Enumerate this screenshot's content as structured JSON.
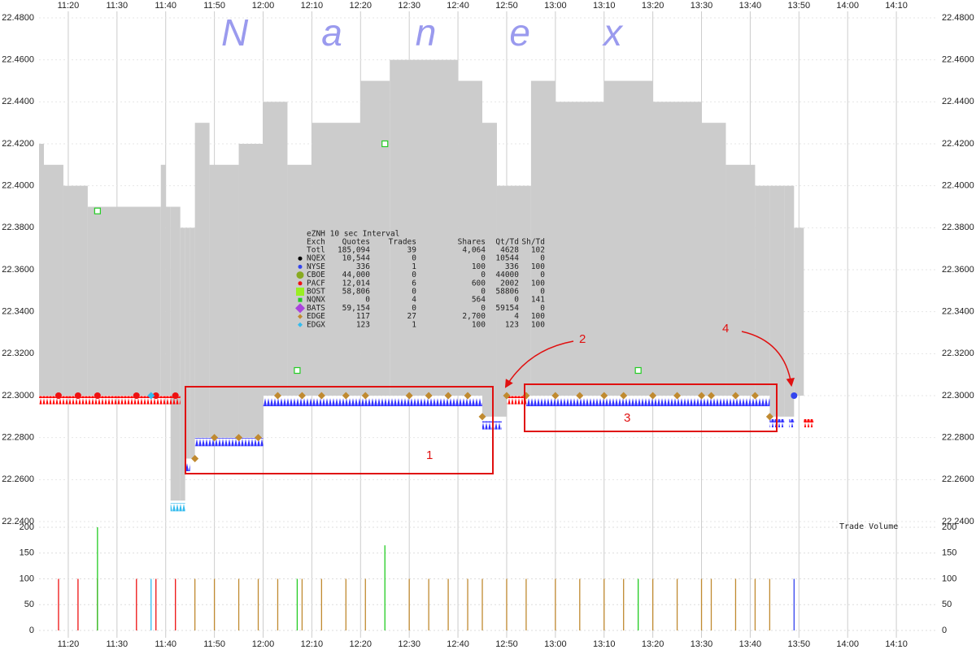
{
  "chart_data": {
    "type": "tick-chart",
    "watermark": "Nanex",
    "volume_title": "Trade Volume",
    "xlim": [
      "11:14",
      "14:18"
    ],
    "xticks": [
      "11:20",
      "11:30",
      "11:40",
      "11:50",
      "12:00",
      "12:10",
      "12:20",
      "12:30",
      "12:40",
      "12:50",
      "13:00",
      "13:10",
      "13:20",
      "13:30",
      "13:40",
      "13:50",
      "14:00",
      "14:10"
    ],
    "ylim": [
      22.24,
      22.48
    ],
    "yticks": [
      {
        "value": 22.48,
        "label": "22.4800"
      },
      {
        "value": 22.46,
        "label": "22.4600"
      },
      {
        "value": 22.44,
        "label": "22.4400"
      },
      {
        "value": 22.42,
        "label": "22.4200"
      },
      {
        "value": 22.4,
        "label": "22.4000"
      },
      {
        "value": 22.38,
        "label": "22.3800"
      },
      {
        "value": 22.36,
        "label": "22.3600"
      },
      {
        "value": 22.34,
        "label": "22.3400"
      },
      {
        "value": 22.32,
        "label": "22.3200"
      },
      {
        "value": 22.3,
        "label": "22.3000"
      },
      {
        "value": 22.28,
        "label": "22.2800"
      },
      {
        "value": 22.26,
        "label": "22.2600"
      },
      {
        "value": 22.24,
        "label": "22.2400"
      }
    ],
    "y2lim": [
      0,
      200
    ],
    "y2ticks": [
      0,
      50,
      100,
      150,
      200
    ],
    "grid": true,
    "nbbo": {
      "color": "#cccccc",
      "end": "13:51",
      "x": [
        "11:14",
        "11:15",
        "11:19",
        "11:24",
        "11:39",
        "11:40",
        "11:41",
        "11:43",
        "11:44",
        "11:45",
        "11:46",
        "11:49",
        "11:55",
        "12:00",
        "12:05",
        "12:10",
        "12:20",
        "12:26",
        "12:40",
        "12:45",
        "12:48",
        "12:50",
        "12:55",
        "13:00",
        "13:10",
        "13:20",
        "13:30",
        "13:35",
        "13:41",
        "13:44",
        "13:47",
        "13:49"
      ],
      "ask": [
        22.42,
        22.41,
        22.4,
        22.39,
        22.41,
        22.39,
        22.39,
        22.38,
        22.38,
        22.38,
        22.43,
        22.41,
        22.42,
        22.44,
        22.41,
        22.43,
        22.45,
        22.46,
        22.45,
        22.43,
        22.4,
        22.4,
        22.45,
        22.44,
        22.45,
        22.44,
        22.43,
        22.41,
        22.4,
        22.4,
        22.4,
        22.38
      ],
      "bid": [
        22.3,
        22.3,
        22.3,
        22.3,
        22.3,
        22.3,
        22.25,
        22.25,
        22.27,
        22.27,
        22.28,
        22.28,
        22.28,
        22.3,
        22.3,
        22.3,
        22.3,
        22.3,
        22.3,
        22.29,
        22.29,
        22.3,
        22.3,
        22.3,
        22.3,
        22.3,
        22.3,
        22.3,
        22.3,
        22.29,
        22.29,
        22.3
      ]
    },
    "quote_runs": [
      {
        "color": "#ff0000",
        "from": "11:14",
        "to": "11:43",
        "price": 22.299
      },
      {
        "color": "#33bbee",
        "from": "11:41",
        "to": "11:44",
        "price": 22.248
      },
      {
        "color": "#3333ff",
        "from": "11:44",
        "to": "11:45",
        "price": 22.267
      },
      {
        "color": "#3333ff",
        "from": "11:46",
        "to": "12:00",
        "price": 22.279
      },
      {
        "color": "#3333ff",
        "from": "12:00",
        "to": "12:45",
        "price": 22.298
      },
      {
        "color": "#3333ff",
        "from": "12:45",
        "to": "12:49",
        "price": 22.287
      },
      {
        "color": "#ff0000",
        "from": "12:50",
        "to": "12:54",
        "price": 22.299
      },
      {
        "color": "#3333ff",
        "from": "12:54",
        "to": "13:44",
        "price": 22.298
      },
      {
        "color": "#3333ff",
        "from": "13:44",
        "to": "13:47",
        "price": 22.288
      },
      {
        "color": "#3333ff",
        "from": "13:48",
        "to": "13:49",
        "price": 22.288
      },
      {
        "color": "#ff0000",
        "from": "13:51",
        "to": "13:53",
        "price": 22.288
      }
    ],
    "series": [
      {
        "name": "PACF",
        "color": "#ee1111",
        "marker": "dot",
        "x": [
          "11:18",
          "11:22",
          "11:26",
          "11:34",
          "11:38",
          "11:42"
        ],
        "y": [
          22.3,
          22.3,
          22.3,
          22.3,
          22.3,
          22.3
        ],
        "volume": [
          100,
          100,
          100,
          100,
          100,
          100
        ]
      },
      {
        "name": "EDGX",
        "color": "#33bbee",
        "marker": "diamond",
        "x": [
          "11:37"
        ],
        "y": [
          22.3
        ],
        "volume": [
          100
        ]
      },
      {
        "name": "NQNX",
        "color": "#22cc22",
        "marker": "square",
        "x": [
          "11:26",
          "12:07",
          "12:25",
          "13:17"
        ],
        "y": [
          22.388,
          22.312,
          22.42,
          22.312
        ],
        "volume": [
          200,
          100,
          165,
          100
        ]
      },
      {
        "name": "NYSE",
        "color": "#3344ee",
        "marker": "dot",
        "x": [
          "13:49"
        ],
        "y": [
          22.3
        ],
        "volume": [
          100
        ]
      },
      {
        "name": "EDGE",
        "color": "#c08a30",
        "marker": "diamond",
        "x": [
          "11:46",
          "11:50",
          "11:55",
          "11:59",
          "12:03",
          "12:08",
          "12:12",
          "12:17",
          "12:21",
          "12:30",
          "12:34",
          "12:38",
          "12:42",
          "12:45",
          "12:50",
          "12:54",
          "13:00",
          "13:05",
          "13:10",
          "13:14",
          "13:20",
          "13:25",
          "13:30",
          "13:32",
          "13:37",
          "13:41",
          "13:44"
        ],
        "y": [
          22.27,
          22.28,
          22.28,
          22.28,
          22.3,
          22.3,
          22.3,
          22.3,
          22.3,
          22.3,
          22.3,
          22.3,
          22.3,
          22.29,
          22.3,
          22.3,
          22.3,
          22.3,
          22.3,
          22.3,
          22.3,
          22.3,
          22.3,
          22.3,
          22.3,
          22.3,
          22.29
        ],
        "volume": [
          100,
          100,
          100,
          100,
          100,
          100,
          100,
          100,
          100,
          100,
          100,
          100,
          100,
          100,
          100,
          100,
          100,
          100,
          100,
          100,
          100,
          100,
          100,
          100,
          100,
          100,
          100
        ]
      }
    ],
    "stats_table": {
      "title": "eZNH 10 sec Interval",
      "header": [
        "Exch",
        "Quotes",
        "Trades",
        "Shares",
        "Qt/Td",
        "Sh/Td"
      ],
      "rows": [
        {
          "marker": null,
          "color": null,
          "cells": [
            "Totl",
            "185,094",
            "39",
            "4,064",
            "4628",
            "102"
          ]
        },
        {
          "marker": "dot",
          "color": "#000000",
          "cells": [
            "NQEX",
            "10,544",
            "0",
            "0",
            "10544",
            "0"
          ]
        },
        {
          "marker": "dot",
          "color": "#3344ee",
          "cells": [
            "NYSE",
            "336",
            "1",
            "100",
            "336",
            "100"
          ]
        },
        {
          "marker": "bigdot",
          "color": "#88aa22",
          "cells": [
            "CBOE",
            "44,000",
            "0",
            "0",
            "44000",
            "0"
          ]
        },
        {
          "marker": "dot",
          "color": "#ee1111",
          "cells": [
            "PACF",
            "12,014",
            "6",
            "600",
            "2002",
            "100"
          ]
        },
        {
          "marker": "bigsquare",
          "color": "#99ee22",
          "cells": [
            "BOST",
            "58,806",
            "0",
            "0",
            "58806",
            "0"
          ]
        },
        {
          "marker": "smallsquare",
          "color": "#22cc22",
          "cells": [
            "NQNX",
            "0",
            "4",
            "564",
            "0",
            "141"
          ]
        },
        {
          "marker": "bigdiamond",
          "color": "#aa44dd",
          "cells": [
            "BATS",
            "59,154",
            "0",
            "0",
            "59154",
            "0"
          ]
        },
        {
          "marker": "diamond",
          "color": "#c08a30",
          "cells": [
            "EDGE",
            "117",
            "27",
            "2,700",
            "4",
            "100"
          ]
        },
        {
          "marker": "diamond",
          "color": "#33bbee",
          "cells": [
            "EDGX",
            "123",
            "1",
            "100",
            "123",
            "100"
          ]
        }
      ]
    },
    "annotations": [
      {
        "label": "1"
      },
      {
        "label": "2"
      },
      {
        "label": "3"
      },
      {
        "label": "4"
      }
    ]
  }
}
